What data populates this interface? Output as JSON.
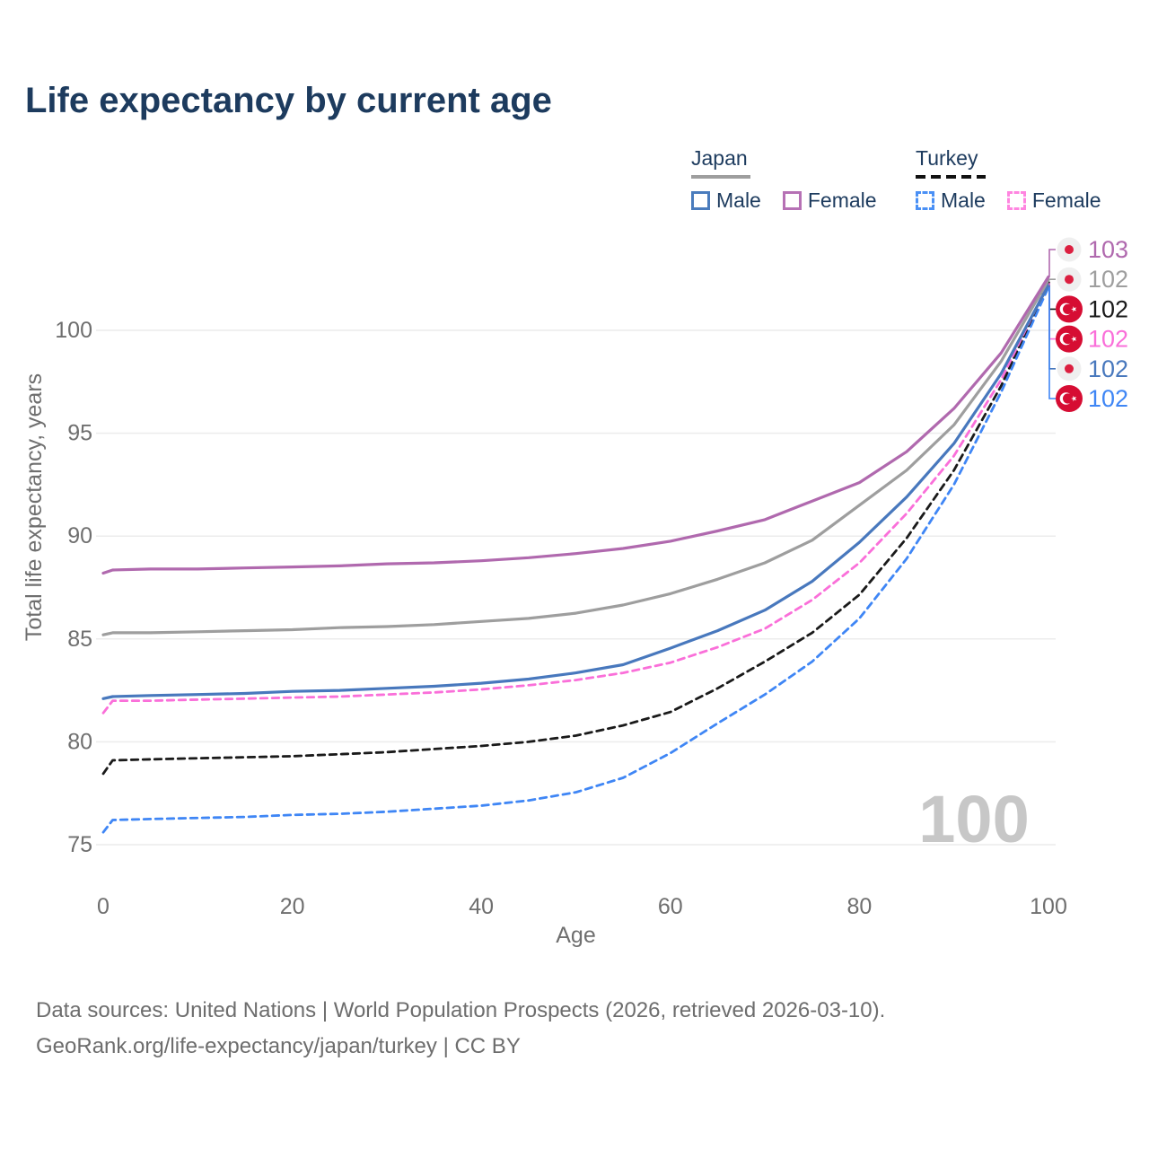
{
  "title": "Life expectancy by current age",
  "legend": {
    "japan": {
      "label": "Japan",
      "male": "Male",
      "female": "Female"
    },
    "turkey": {
      "label": "Turkey",
      "male": "Male",
      "female": "Female"
    }
  },
  "colors": {
    "title_text": "#1d3b5e",
    "axis_text": "#6f6f6f",
    "gridline": "#ececec",
    "watermark": "#c7c7c7",
    "japan_male": "#4878bd",
    "japan_female": "#b069ae",
    "japan_overall": "#9e9e9e",
    "turkey_male": "#3f86f5",
    "turkey_female": "#fa6fd9",
    "turkey_overall": "#1a1a1a",
    "japan_flag_bg": "#efefef",
    "japan_flag_dot": "#dc1f40",
    "turkey_flag_bg": "#d60d33",
    "legend_box_japan_male": "#4a7cbd",
    "legend_box_japan_female": "#b671b5",
    "legend_box_turkey_male": "#4a90f5",
    "legend_box_turkey_female": "#ff85e0"
  },
  "chart_data": {
    "type": "line",
    "title": "Life expectancy by current age",
    "xlabel": "Age",
    "ylabel": "Total life expectancy, years",
    "xlim": [
      0,
      100
    ],
    "ylim": [
      75,
      100
    ],
    "x_ticks": [
      0,
      20,
      40,
      60,
      80,
      100
    ],
    "y_ticks": [
      75,
      80,
      85,
      90,
      95,
      100
    ],
    "grid": "horizontal",
    "legend_position": "top-right",
    "watermark": "100",
    "x": [
      0,
      1,
      5,
      10,
      15,
      20,
      25,
      30,
      35,
      40,
      45,
      50,
      55,
      60,
      65,
      70,
      75,
      80,
      85,
      90,
      95,
      100
    ],
    "series": [
      {
        "id": "turkey-male",
        "name": "Turkey Male",
        "color": "#3f86f5",
        "dash": "dashed",
        "flag": "turkey",
        "end_label": "102",
        "values": [
          75.6,
          76.2,
          76.25,
          76.3,
          76.35,
          76.45,
          76.5,
          76.6,
          76.75,
          76.9,
          77.15,
          77.55,
          78.25,
          79.45,
          80.9,
          82.3,
          83.9,
          86.0,
          88.9,
          92.5,
          97.0,
          102.1
        ]
      },
      {
        "id": "turkey-overall",
        "name": "Turkey",
        "color": "#1a1a1a",
        "dash": "dashed",
        "flag": "turkey",
        "end_label": "102",
        "values": [
          78.45,
          79.1,
          79.15,
          79.2,
          79.25,
          79.3,
          79.4,
          79.5,
          79.65,
          79.8,
          80.0,
          80.3,
          80.8,
          81.45,
          82.6,
          83.9,
          85.3,
          87.15,
          89.9,
          93.2,
          97.3,
          102.35
        ]
      },
      {
        "id": "turkey-female",
        "name": "Turkey Female",
        "color": "#fa6fd9",
        "dash": "dashed",
        "flag": "turkey",
        "end_label": "102",
        "values": [
          81.4,
          82.0,
          82.0,
          82.05,
          82.1,
          82.15,
          82.2,
          82.3,
          82.4,
          82.55,
          82.75,
          83.0,
          83.35,
          83.85,
          84.6,
          85.5,
          86.9,
          88.7,
          91.1,
          93.9,
          97.6,
          102.3
        ]
      },
      {
        "id": "japan-male",
        "name": "Japan Male",
        "color": "#4878bd",
        "dash": "solid",
        "flag": "japan",
        "end_label": "102",
        "values": [
          82.1,
          82.2,
          82.25,
          82.3,
          82.35,
          82.45,
          82.5,
          82.6,
          82.7,
          82.85,
          83.05,
          83.35,
          83.75,
          84.55,
          85.4,
          86.4,
          87.8,
          89.7,
          91.9,
          94.5,
          97.9,
          102.2
        ]
      },
      {
        "id": "japan-overall",
        "name": "Japan",
        "color": "#9e9e9e",
        "dash": "solid",
        "flag": "japan",
        "end_label": "102",
        "values": [
          85.2,
          85.3,
          85.3,
          85.35,
          85.4,
          85.45,
          85.55,
          85.6,
          85.7,
          85.85,
          86.0,
          86.25,
          86.65,
          87.2,
          87.9,
          88.7,
          89.8,
          91.5,
          93.2,
          95.4,
          98.5,
          102.45
        ]
      },
      {
        "id": "japan-female",
        "name": "Japan Female",
        "color": "#b069ae",
        "dash": "solid",
        "flag": "japan",
        "end_label": "103",
        "values": [
          88.2,
          88.35,
          88.4,
          88.4,
          88.45,
          88.5,
          88.55,
          88.65,
          88.7,
          88.8,
          88.95,
          89.15,
          89.4,
          89.75,
          90.25,
          90.8,
          91.7,
          92.6,
          94.1,
          96.2,
          98.9,
          102.6
        ]
      }
    ],
    "end_label_order": [
      "japan-female",
      "japan-overall",
      "turkey-overall",
      "turkey-female",
      "japan-male",
      "turkey-male"
    ]
  },
  "footer": {
    "line1": "Data sources: United Nations | World Population Prospects (2026, retrieved 2026-03-10).",
    "line2": "GeoRank.org/life-expectancy/japan/turkey | CC BY"
  }
}
